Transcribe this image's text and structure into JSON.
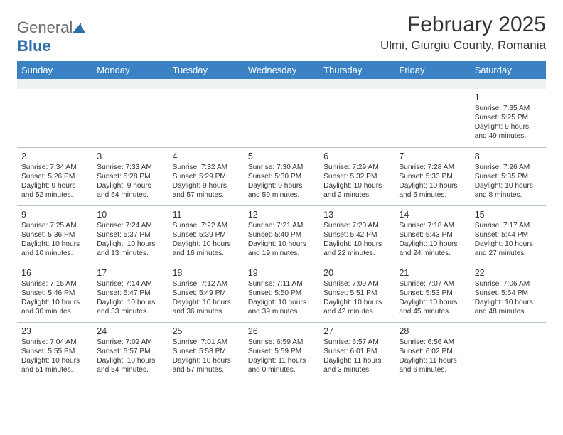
{
  "brand": {
    "name_part1": "General",
    "name_part2": "Blue"
  },
  "title": "February 2025",
  "location": "Ulmi, Giurgiu County, Romania",
  "colors": {
    "header_bg": "#3a82c4",
    "header_text": "#ffffff",
    "brand_gray": "#6a6a6a",
    "brand_blue": "#2f6ea8",
    "cell_border": "#b8c4cc",
    "empty_row_bg": "#eef1f2",
    "text": "#333333"
  },
  "days_of_week": [
    "Sunday",
    "Monday",
    "Tuesday",
    "Wednesday",
    "Thursday",
    "Friday",
    "Saturday"
  ],
  "weeks": [
    [
      null,
      null,
      null,
      null,
      null,
      null,
      {
        "n": "1",
        "sunrise": "7:35 AM",
        "sunset": "5:25 PM",
        "daylight": "9 hours and 49 minutes."
      }
    ],
    [
      {
        "n": "2",
        "sunrise": "7:34 AM",
        "sunset": "5:26 PM",
        "daylight": "9 hours and 52 minutes."
      },
      {
        "n": "3",
        "sunrise": "7:33 AM",
        "sunset": "5:28 PM",
        "daylight": "9 hours and 54 minutes."
      },
      {
        "n": "4",
        "sunrise": "7:32 AM",
        "sunset": "5:29 PM",
        "daylight": "9 hours and 57 minutes."
      },
      {
        "n": "5",
        "sunrise": "7:30 AM",
        "sunset": "5:30 PM",
        "daylight": "9 hours and 59 minutes."
      },
      {
        "n": "6",
        "sunrise": "7:29 AM",
        "sunset": "5:32 PM",
        "daylight": "10 hours and 2 minutes."
      },
      {
        "n": "7",
        "sunrise": "7:28 AM",
        "sunset": "5:33 PM",
        "daylight": "10 hours and 5 minutes."
      },
      {
        "n": "8",
        "sunrise": "7:26 AM",
        "sunset": "5:35 PM",
        "daylight": "10 hours and 8 minutes."
      }
    ],
    [
      {
        "n": "9",
        "sunrise": "7:25 AM",
        "sunset": "5:36 PM",
        "daylight": "10 hours and 10 minutes."
      },
      {
        "n": "10",
        "sunrise": "7:24 AM",
        "sunset": "5:37 PM",
        "daylight": "10 hours and 13 minutes."
      },
      {
        "n": "11",
        "sunrise": "7:22 AM",
        "sunset": "5:39 PM",
        "daylight": "10 hours and 16 minutes."
      },
      {
        "n": "12",
        "sunrise": "7:21 AM",
        "sunset": "5:40 PM",
        "daylight": "10 hours and 19 minutes."
      },
      {
        "n": "13",
        "sunrise": "7:20 AM",
        "sunset": "5:42 PM",
        "daylight": "10 hours and 22 minutes."
      },
      {
        "n": "14",
        "sunrise": "7:18 AM",
        "sunset": "5:43 PM",
        "daylight": "10 hours and 24 minutes."
      },
      {
        "n": "15",
        "sunrise": "7:17 AM",
        "sunset": "5:44 PM",
        "daylight": "10 hours and 27 minutes."
      }
    ],
    [
      {
        "n": "16",
        "sunrise": "7:15 AM",
        "sunset": "5:46 PM",
        "daylight": "10 hours and 30 minutes."
      },
      {
        "n": "17",
        "sunrise": "7:14 AM",
        "sunset": "5:47 PM",
        "daylight": "10 hours and 33 minutes."
      },
      {
        "n": "18",
        "sunrise": "7:12 AM",
        "sunset": "5:49 PM",
        "daylight": "10 hours and 36 minutes."
      },
      {
        "n": "19",
        "sunrise": "7:11 AM",
        "sunset": "5:50 PM",
        "daylight": "10 hours and 39 minutes."
      },
      {
        "n": "20",
        "sunrise": "7:09 AM",
        "sunset": "5:51 PM",
        "daylight": "10 hours and 42 minutes."
      },
      {
        "n": "21",
        "sunrise": "7:07 AM",
        "sunset": "5:53 PM",
        "daylight": "10 hours and 45 minutes."
      },
      {
        "n": "22",
        "sunrise": "7:06 AM",
        "sunset": "5:54 PM",
        "daylight": "10 hours and 48 minutes."
      }
    ],
    [
      {
        "n": "23",
        "sunrise": "7:04 AM",
        "sunset": "5:55 PM",
        "daylight": "10 hours and 51 minutes."
      },
      {
        "n": "24",
        "sunrise": "7:02 AM",
        "sunset": "5:57 PM",
        "daylight": "10 hours and 54 minutes."
      },
      {
        "n": "25",
        "sunrise": "7:01 AM",
        "sunset": "5:58 PM",
        "daylight": "10 hours and 57 minutes."
      },
      {
        "n": "26",
        "sunrise": "6:59 AM",
        "sunset": "5:59 PM",
        "daylight": "11 hours and 0 minutes."
      },
      {
        "n": "27",
        "sunrise": "6:57 AM",
        "sunset": "6:01 PM",
        "daylight": "11 hours and 3 minutes."
      },
      {
        "n": "28",
        "sunrise": "6:56 AM",
        "sunset": "6:02 PM",
        "daylight": "11 hours and 6 minutes."
      },
      null
    ]
  ],
  "labels": {
    "sunrise": "Sunrise: ",
    "sunset": "Sunset: ",
    "daylight": "Daylight: "
  }
}
